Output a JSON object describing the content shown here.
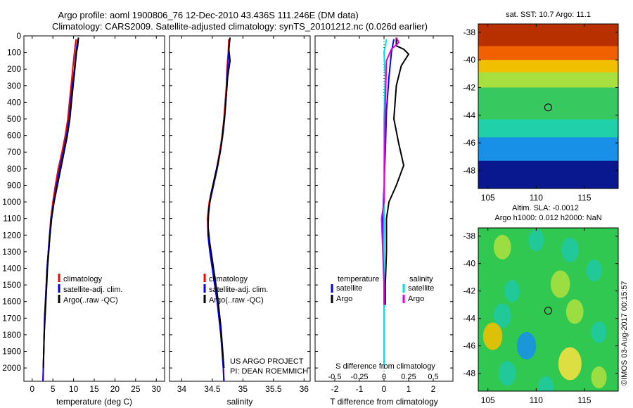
{
  "header": {
    "line1": "Argo profile: aoml 1900806_76 12-Dec-2010 43.436S 111.246E (DM data)",
    "line2": "Climatology: CARS2009. Satellite-adjusted climatology: synTS_20101212.nc (0.026d earlier)"
  },
  "y_ticks": [
    "0",
    "100",
    "200",
    "300",
    "400",
    "500",
    "600",
    "700",
    "800",
    "900",
    "1000",
    "1100",
    "1200",
    "1300",
    "1400",
    "1500",
    "1600",
    "1700",
    "1800",
    "1900",
    "2000"
  ],
  "colors": {
    "climatology": "#ff0000",
    "satellite": "#0000ff",
    "argo": "#000000",
    "sat_temp": "#0000ff",
    "sat_sal": "#00e0e0",
    "argo_sal": "#e000e0"
  },
  "chart_data": [
    {
      "type": "line",
      "xlabel": "temperature (deg C)",
      "x_ticks": [
        "0",
        "5",
        "10",
        "15",
        "20",
        "25",
        "30"
      ],
      "xlim": [
        -2,
        32
      ],
      "ylim": [
        2080,
        0
      ],
      "legend": [
        "climatology",
        "satellite-adj. clim.",
        "Argo(..raw -QC)"
      ],
      "series": [
        {
          "name": "climatology",
          "color": "#ff0000",
          "points": [
            [
              10.6,
              20
            ],
            [
              10.2,
              100
            ],
            [
              9.8,
              200
            ],
            [
              9.4,
              300
            ],
            [
              9.0,
              400
            ],
            [
              8.6,
              500
            ],
            [
              8.0,
              600
            ],
            [
              7.2,
              700
            ],
            [
              6.3,
              800
            ],
            [
              5.6,
              900
            ],
            [
              5.0,
              1000
            ],
            [
              4.5,
              1100
            ],
            [
              4.2,
              1200
            ],
            [
              3.9,
              1300
            ],
            [
              3.6,
              1400
            ],
            [
              3.4,
              1500
            ],
            [
              3.2,
              1600
            ],
            [
              3.0,
              1700
            ],
            [
              2.9,
              1800
            ],
            [
              2.8,
              1900
            ],
            [
              2.7,
              2000
            ],
            [
              2.6,
              2080
            ]
          ]
        },
        {
          "name": "satellite-adj. clim.",
          "color": "#0000ff",
          "points": [
            [
              11.0,
              20
            ],
            [
              10.6,
              100
            ],
            [
              10.2,
              200
            ],
            [
              9.7,
              300
            ],
            [
              9.3,
              400
            ],
            [
              8.9,
              500
            ],
            [
              8.3,
              600
            ],
            [
              7.5,
              700
            ],
            [
              6.6,
              800
            ],
            [
              5.9,
              900
            ],
            [
              5.2,
              1000
            ],
            [
              4.6,
              1100
            ],
            [
              4.2,
              1200
            ],
            [
              3.9,
              1300
            ],
            [
              3.6,
              1400
            ],
            [
              3.4,
              1500
            ],
            [
              3.2,
              1600
            ],
            [
              3.0,
              1700
            ],
            [
              2.9,
              1800
            ],
            [
              2.8,
              1900
            ],
            [
              2.7,
              2000
            ],
            [
              2.6,
              2080
            ]
          ]
        },
        {
          "name": "Argo(..raw -QC)",
          "color": "#000000",
          "points": [
            [
              11.2,
              10
            ],
            [
              11.0,
              60
            ],
            [
              10.7,
              100
            ],
            [
              10.3,
              200
            ],
            [
              9.9,
              300
            ],
            [
              9.5,
              400
            ],
            [
              9.1,
              500
            ],
            [
              8.5,
              600
            ],
            [
              7.7,
              700
            ],
            [
              6.9,
              800
            ],
            [
              6.1,
              900
            ],
            [
              5.3,
              1000
            ],
            [
              4.7,
              1100
            ],
            [
              4.3,
              1200
            ],
            [
              4.0,
              1300
            ],
            [
              3.7,
              1400
            ],
            [
              3.5,
              1500
            ],
            [
              3.3,
              1600
            ],
            [
              3.1,
              1700
            ],
            [
              2.9,
              1800
            ],
            [
              2.8,
              1900
            ],
            [
              2.7,
              2000
            ]
          ]
        }
      ]
    },
    {
      "type": "line",
      "xlabel": "salinity",
      "x_ticks": [
        "34",
        "34.5",
        "35",
        "35.5",
        "36"
      ],
      "xlim": [
        33.8,
        36.1
      ],
      "ylim": [
        2080,
        0
      ],
      "legend": [
        "climatology",
        "satellite-adj. clim.",
        "Argo(..raw -QC)"
      ],
      "annotation": [
        "US ARGO PROJECT",
        "PI: DEAN ROEMMICH"
      ],
      "series": [
        {
          "name": "climatology",
          "color": "#ff0000",
          "points": [
            [
              34.77,
              20
            ],
            [
              34.76,
              100
            ],
            [
              34.74,
              200
            ],
            [
              34.73,
              300
            ],
            [
              34.71,
              400
            ],
            [
              34.69,
              500
            ],
            [
              34.66,
              600
            ],
            [
              34.62,
              700
            ],
            [
              34.57,
              800
            ],
            [
              34.51,
              900
            ],
            [
              34.45,
              1000
            ],
            [
              34.42,
              1100
            ],
            [
              34.43,
              1200
            ],
            [
              34.46,
              1300
            ],
            [
              34.5,
              1400
            ],
            [
              34.54,
              1500
            ],
            [
              34.58,
              1600
            ],
            [
              34.61,
              1700
            ],
            [
              34.64,
              1800
            ],
            [
              34.66,
              1900
            ],
            [
              34.68,
              2000
            ],
            [
              34.69,
              2080
            ]
          ]
        },
        {
          "name": "satellite-adj. clim.",
          "color": "#0000ff",
          "points": [
            [
              34.78,
              20
            ],
            [
              34.77,
              100
            ],
            [
              34.75,
              200
            ],
            [
              34.74,
              300
            ],
            [
              34.72,
              400
            ],
            [
              34.7,
              500
            ],
            [
              34.67,
              600
            ],
            [
              34.63,
              700
            ],
            [
              34.58,
              800
            ],
            [
              34.52,
              900
            ],
            [
              34.46,
              1000
            ],
            [
              34.43,
              1100
            ],
            [
              34.43,
              1200
            ],
            [
              34.46,
              1300
            ],
            [
              34.5,
              1400
            ],
            [
              34.54,
              1500
            ],
            [
              34.58,
              1600
            ],
            [
              34.61,
              1700
            ],
            [
              34.64,
              1800
            ],
            [
              34.66,
              1900
            ],
            [
              34.68,
              2000
            ],
            [
              34.69,
              2080
            ]
          ]
        },
        {
          "name": "Argo(..raw -QC)",
          "color": "#000000",
          "points": [
            [
              34.79,
              10
            ],
            [
              34.77,
              80
            ],
            [
              34.79,
              150
            ],
            [
              34.75,
              250
            ],
            [
              34.73,
              350
            ],
            [
              34.71,
              450
            ],
            [
              34.68,
              550
            ],
            [
              34.65,
              650
            ],
            [
              34.6,
              750
            ],
            [
              34.54,
              850
            ],
            [
              34.48,
              950
            ],
            [
              34.44,
              1050
            ],
            [
              34.43,
              1150
            ],
            [
              34.46,
              1250
            ],
            [
              34.5,
              1350
            ],
            [
              34.54,
              1450
            ],
            [
              34.58,
              1550
            ],
            [
              34.61,
              1650
            ],
            [
              34.64,
              1750
            ],
            [
              34.66,
              1850
            ],
            [
              34.68,
              1950
            ],
            [
              34.69,
              2000
            ]
          ]
        }
      ]
    },
    {
      "type": "line",
      "xlabel": "T difference from climatology",
      "x_ticks": [
        "-2",
        "-1",
        "0",
        "1",
        "2"
      ],
      "xlim": [
        -2.8,
        2.8
      ],
      "ylim": [
        2080,
        0
      ],
      "top_label": "S difference from climatology",
      "top_ticks": [
        {
          "label": "-0.5",
          "t": -2
        },
        {
          "label": "-0.25",
          "t": -1
        },
        {
          "label": "0",
          "t": 0
        },
        {
          "label": "0.25",
          "t": 1
        },
        {
          "label": "0.5",
          "t": 2
        }
      ],
      "legend_temperature": [
        "temperature",
        "satellite",
        "Argo"
      ],
      "legend_salinity": [
        "salinity",
        "satellite",
        "Argo"
      ],
      "series": [
        {
          "name": "temperature satellite",
          "color": "#0000ff",
          "points": [
            [
              0.4,
              20
            ],
            [
              0.3,
              100
            ],
            [
              0.2,
              250
            ],
            [
              0.1,
              450
            ],
            [
              0.05,
              700
            ],
            [
              0.0,
              900
            ],
            [
              -0.05,
              1100
            ],
            [
              0.0,
              1300
            ],
            [
              0.0,
              1600
            ],
            [
              0.0,
              2000
            ]
          ]
        },
        {
          "name": "temperature Argo",
          "color": "#000000",
          "points": [
            [
              0.5,
              10
            ],
            [
              0.5,
              60
            ],
            [
              0.8,
              80
            ],
            [
              1.0,
              110
            ],
            [
              0.7,
              180
            ],
            [
              0.5,
              300
            ],
            [
              0.4,
              500
            ],
            [
              0.6,
              650
            ],
            [
              0.8,
              780
            ],
            [
              0.5,
              900
            ],
            [
              0.2,
              1000
            ],
            [
              0.1,
              1100
            ],
            [
              0.1,
              1300
            ],
            [
              0.05,
              1500
            ],
            [
              0.05,
              1620
            ]
          ]
        },
        {
          "name": "salinity satellite",
          "color": "#00e0e0",
          "points": [
            [
              0.1,
              20
            ],
            [
              0.0,
              100
            ],
            [
              0.05,
              250
            ],
            [
              0.0,
              500
            ],
            [
              0.0,
              900
            ],
            [
              0.0,
              1200
            ],
            [
              0.0,
              1600
            ],
            [
              0.0,
              2000
            ]
          ]
        },
        {
          "name": "salinity Argo",
          "color": "#e000e0",
          "points": [
            [
              0.5,
              10
            ],
            [
              0.6,
              40
            ],
            [
              0.3,
              80
            ],
            [
              0.1,
              150
            ],
            [
              0.05,
              400
            ],
            [
              0.0,
              1000
            ],
            [
              -0.1,
              1100
            ],
            [
              -0.05,
              1300
            ],
            [
              0.0,
              1500
            ],
            [
              0.0,
              1620
            ]
          ]
        }
      ]
    },
    {
      "type": "heatmap",
      "title": "sat. SST: 10.7  Argo: 11.1",
      "x_ticks": [
        "105",
        "110",
        "115"
      ],
      "y_ticks": [
        "-38",
        "-40",
        "-42",
        "-44",
        "-46",
        "-48"
      ],
      "xlim": [
        104,
        118.5
      ],
      "ylim": [
        -49.3,
        -37.4
      ],
      "marker": {
        "lon": 111.246,
        "lat": -43.436
      },
      "bands": [
        {
          "lat_top": -37.4,
          "lat_bot": -39.0,
          "color": "#b83000"
        },
        {
          "lat_top": -39.0,
          "lat_bot": -40.0,
          "color": "#f06000"
        },
        {
          "lat_top": -40.0,
          "lat_bot": -40.9,
          "color": "#f0c000"
        },
        {
          "lat_top": -40.9,
          "lat_bot": -42.0,
          "color": "#a8e040"
        },
        {
          "lat_top": -42.0,
          "lat_bot": -44.3,
          "color": "#38c860"
        },
        {
          "lat_top": -44.3,
          "lat_bot": -45.6,
          "color": "#20d0a8"
        },
        {
          "lat_top": -45.6,
          "lat_bot": -47.3,
          "color": "#1890e8"
        },
        {
          "lat_top": -47.3,
          "lat_bot": -49.3,
          "color": "#0a1890"
        }
      ]
    },
    {
      "type": "heatmap",
      "title_lines": [
        "Altim. SLA: -0.0012",
        "Argo h1000: 0.012 h2000: NaN"
      ],
      "x_ticks": [
        "105",
        "110",
        "115"
      ],
      "y_ticks": [
        "-38",
        "-40",
        "-42",
        "-44",
        "-46",
        "-48"
      ],
      "xlim": [
        104,
        118.5
      ],
      "ylim": [
        -49.3,
        -37.4
      ],
      "marker": {
        "lon": 111.246,
        "lat": -43.436
      },
      "background": "#30c850",
      "blobs": [
        {
          "lon": 106.5,
          "lat": -38.8,
          "r": 0.9,
          "color": "#a8e040"
        },
        {
          "lon": 110.0,
          "lat": -38.3,
          "r": 0.8,
          "color": "#20c8a0"
        },
        {
          "lon": 113.5,
          "lat": -39.0,
          "r": 0.9,
          "color": "#20c8a0"
        },
        {
          "lon": 116.0,
          "lat": -40.5,
          "r": 0.8,
          "color": "#20c8a0"
        },
        {
          "lon": 112.5,
          "lat": -41.5,
          "r": 1.0,
          "color": "#a8e040"
        },
        {
          "lon": 107.5,
          "lat": -42.0,
          "r": 0.8,
          "color": "#20c8a0"
        },
        {
          "lon": 106.5,
          "lat": -43.8,
          "r": 0.9,
          "color": "#20c8a0"
        },
        {
          "lon": 114.0,
          "lat": -43.5,
          "r": 0.9,
          "color": "#a8e040"
        },
        {
          "lon": 116.5,
          "lat": -45.0,
          "r": 0.8,
          "color": "#20c8a0"
        },
        {
          "lon": 105.5,
          "lat": -45.3,
          "r": 1.0,
          "color": "#f0c000"
        },
        {
          "lon": 109.0,
          "lat": -46.0,
          "r": 1.0,
          "color": "#1890e8"
        },
        {
          "lon": 113.5,
          "lat": -47.3,
          "r": 1.2,
          "color": "#f0e040"
        },
        {
          "lon": 107.0,
          "lat": -48.0,
          "r": 0.9,
          "color": "#20c8a0"
        },
        {
          "lon": 116.5,
          "lat": -48.3,
          "r": 0.8,
          "color": "#a8e040"
        },
        {
          "lon": 111.0,
          "lat": -49.0,
          "r": 0.8,
          "color": "#20c8a0"
        }
      ]
    }
  ],
  "watermark": "©IMOS 03-Aug-2017 00:15:57"
}
